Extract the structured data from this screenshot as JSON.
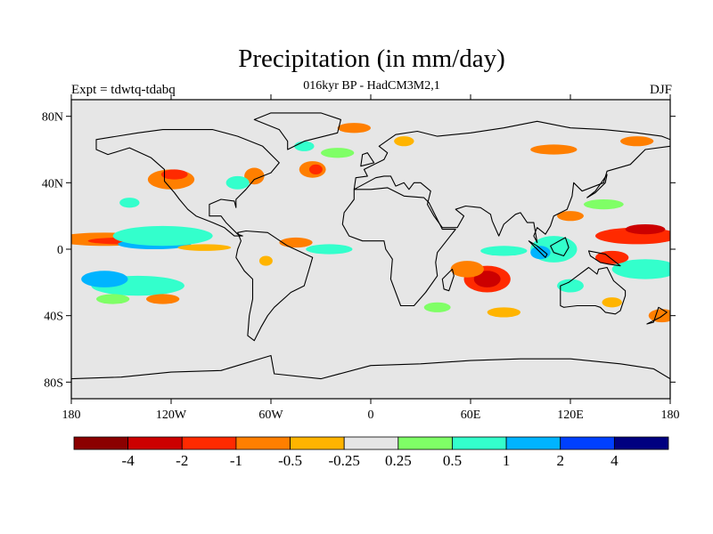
{
  "figure": {
    "title": "Precipitation (in mm/day)",
    "subtitle": "016kyr BP - HadCM3M2,1",
    "left_label": "Expt = tdwtq-tdabq",
    "right_label": "DJF"
  },
  "axes": {
    "lat_ticks": [
      {
        "label": "80N",
        "value": 80
      },
      {
        "label": "40N",
        "value": 40
      },
      {
        "label": "0",
        "value": 0
      },
      {
        "label": "40S",
        "value": -40
      },
      {
        "label": "80S",
        "value": -80
      }
    ],
    "lon_ticks": [
      {
        "label": "180",
        "value": -180
      },
      {
        "label": "120W",
        "value": -120
      },
      {
        "label": "60W",
        "value": -60
      },
      {
        "label": "0",
        "value": 0
      },
      {
        "label": "60E",
        "value": 60
      },
      {
        "label": "120E",
        "value": 120
      },
      {
        "label": "180",
        "value": 180
      }
    ],
    "lon_range": [
      -180,
      180
    ],
    "lat_range": [
      -90,
      90
    ]
  },
  "colorbar": {
    "colors": [
      "#8b0000",
      "#cc0000",
      "#ff2a00",
      "#ff7f00",
      "#ffb400",
      "#e6e6e6",
      "#7fff66",
      "#33ffcc",
      "#00b4ff",
      "#0040ff",
      "#000080"
    ],
    "labels": [
      "-4",
      "-2",
      "-1",
      "-0.5",
      "-0.25",
      "0.25",
      "0.5",
      "1",
      "2",
      "4"
    ]
  },
  "map": {
    "background": "#e6e6e6",
    "blobs": [
      {
        "lon": -160,
        "lat": 6,
        "rx": 30,
        "ry": 4,
        "color": "#ff7f00"
      },
      {
        "lon": -150,
        "lat": 5,
        "rx": 20,
        "ry": 2,
        "color": "#ff2a00"
      },
      {
        "lon": -130,
        "lat": 3,
        "rx": 22,
        "ry": 3,
        "color": "#00b4ff"
      },
      {
        "lon": -125,
        "lat": 8,
        "rx": 30,
        "ry": 6,
        "color": "#33ffcc"
      },
      {
        "lon": -100,
        "lat": 1,
        "rx": 16,
        "ry": 2,
        "color": "#ffb400"
      },
      {
        "lon": -120,
        "lat": 42,
        "rx": 14,
        "ry": 6,
        "color": "#ff7f00"
      },
      {
        "lon": -118,
        "lat": 45,
        "rx": 8,
        "ry": 3,
        "color": "#ff2a00"
      },
      {
        "lon": -145,
        "lat": 28,
        "rx": 6,
        "ry": 3,
        "color": "#33ffcc"
      },
      {
        "lon": -70,
        "lat": 44,
        "rx": 6,
        "ry": 5,
        "color": "#ff7f00"
      },
      {
        "lon": -80,
        "lat": 40,
        "rx": 7,
        "ry": 4,
        "color": "#33ffcc"
      },
      {
        "lon": -35,
        "lat": 48,
        "rx": 8,
        "ry": 5,
        "color": "#ff7f00"
      },
      {
        "lon": -33,
        "lat": 48,
        "rx": 4,
        "ry": 3,
        "color": "#ff2a00"
      },
      {
        "lon": -40,
        "lat": 62,
        "rx": 6,
        "ry": 3,
        "color": "#33ffcc"
      },
      {
        "lon": -10,
        "lat": 73,
        "rx": 10,
        "ry": 3,
        "color": "#ff7f00"
      },
      {
        "lon": 20,
        "lat": 65,
        "rx": 6,
        "ry": 3,
        "color": "#ffb400"
      },
      {
        "lon": -20,
        "lat": 58,
        "rx": 10,
        "ry": 3,
        "color": "#7fff66"
      },
      {
        "lon": -45,
        "lat": 4,
        "rx": 10,
        "ry": 3,
        "color": "#ff7f00"
      },
      {
        "lon": -25,
        "lat": 0,
        "rx": 14,
        "ry": 3,
        "color": "#33ffcc"
      },
      {
        "lon": -63,
        "lat": -7,
        "rx": 4,
        "ry": 3,
        "color": "#ffb400"
      },
      {
        "lon": -140,
        "lat": -22,
        "rx": 28,
        "ry": 6,
        "color": "#33ffcc"
      },
      {
        "lon": -160,
        "lat": -18,
        "rx": 14,
        "ry": 5,
        "color": "#00b4ff"
      },
      {
        "lon": -125,
        "lat": -30,
        "rx": 10,
        "ry": 3,
        "color": "#ff7f00"
      },
      {
        "lon": -155,
        "lat": -30,
        "rx": 10,
        "ry": 3,
        "color": "#7fff66"
      },
      {
        "lon": 70,
        "lat": -18,
        "rx": 14,
        "ry": 8,
        "color": "#ff2a00"
      },
      {
        "lon": 70,
        "lat": -18,
        "rx": 8,
        "ry": 5,
        "color": "#cc0000"
      },
      {
        "lon": 58,
        "lat": -12,
        "rx": 10,
        "ry": 5,
        "color": "#ff7f00"
      },
      {
        "lon": 80,
        "lat": -1,
        "rx": 14,
        "ry": 3,
        "color": "#33ffcc"
      },
      {
        "lon": 110,
        "lat": 0,
        "rx": 14,
        "ry": 8,
        "color": "#33ffcc"
      },
      {
        "lon": 102,
        "lat": -2,
        "rx": 6,
        "ry": 4,
        "color": "#00b4ff"
      },
      {
        "lon": 160,
        "lat": 8,
        "rx": 25,
        "ry": 5,
        "color": "#ff2a00"
      },
      {
        "lon": 165,
        "lat": 12,
        "rx": 12,
        "ry": 3,
        "color": "#cc0000"
      },
      {
        "lon": 165,
        "lat": -12,
        "rx": 20,
        "ry": 6,
        "color": "#33ffcc"
      },
      {
        "lon": 145,
        "lat": -5,
        "rx": 10,
        "ry": 4,
        "color": "#ff2a00"
      },
      {
        "lon": 120,
        "lat": -22,
        "rx": 8,
        "ry": 4,
        "color": "#33ffcc"
      },
      {
        "lon": 120,
        "lat": 20,
        "rx": 8,
        "ry": 3,
        "color": "#ff7f00"
      },
      {
        "lon": 140,
        "lat": 27,
        "rx": 12,
        "ry": 3,
        "color": "#7fff66"
      },
      {
        "lon": 175,
        "lat": -40,
        "rx": 8,
        "ry": 4,
        "color": "#ff7f00"
      },
      {
        "lon": 145,
        "lat": -32,
        "rx": 6,
        "ry": 3,
        "color": "#ffb400"
      },
      {
        "lon": 40,
        "lat": -35,
        "rx": 8,
        "ry": 3,
        "color": "#7fff66"
      },
      {
        "lon": 80,
        "lat": -38,
        "rx": 10,
        "ry": 3,
        "color": "#ffb400"
      },
      {
        "lon": 110,
        "lat": 60,
        "rx": 14,
        "ry": 3,
        "color": "#ff7f00"
      },
      {
        "lon": 160,
        "lat": 65,
        "rx": 10,
        "ry": 3,
        "color": "#ff7f00"
      }
    ],
    "continents": [
      [
        [
          -165,
          66
        ],
        [
          -140,
          70
        ],
        [
          -125,
          72
        ],
        [
          -95,
          72
        ],
        [
          -80,
          68
        ],
        [
          -65,
          62
        ],
        [
          -55,
          52
        ],
        [
          -60,
          46
        ],
        [
          -70,
          42
        ],
        [
          -75,
          36
        ],
        [
          -81,
          30
        ],
        [
          -81,
          25
        ],
        [
          -82,
          29
        ],
        [
          -90,
          30
        ],
        [
          -97,
          27
        ],
        [
          -97,
          20
        ],
        [
          -90,
          20
        ],
        [
          -87,
          16
        ],
        [
          -80,
          9
        ],
        [
          -77,
          8
        ],
        [
          -82,
          8
        ],
        [
          -88,
          13
        ],
        [
          -95,
          16
        ],
        [
          -105,
          20
        ],
        [
          -110,
          24
        ],
        [
          -115,
          30
        ],
        [
          -118,
          34
        ],
        [
          -124,
          41
        ],
        [
          -124,
          48
        ],
        [
          -132,
          55
        ],
        [
          -145,
          61
        ],
        [
          -158,
          57
        ],
        [
          -165,
          60
        ]
      ],
      [
        [
          -80,
          10
        ],
        [
          -75,
          11
        ],
        [
          -62,
          10
        ],
        [
          -50,
          2
        ],
        [
          -35,
          -5
        ],
        [
          -37,
          -12
        ],
        [
          -40,
          -22
        ],
        [
          -48,
          -26
        ],
        [
          -58,
          -35
        ],
        [
          -62,
          -40
        ],
        [
          -66,
          -47
        ],
        [
          -70,
          -55
        ],
        [
          -74,
          -52
        ],
        [
          -73,
          -40
        ],
        [
          -71,
          -30
        ],
        [
          -71,
          -18
        ],
        [
          -76,
          -13
        ],
        [
          -81,
          -5
        ],
        [
          -80,
          0
        ],
        [
          -78,
          5
        ]
      ],
      [
        [
          -50,
          60
        ],
        [
          -40,
          65
        ],
        [
          -20,
          70
        ],
        [
          -18,
          78
        ],
        [
          -30,
          82
        ],
        [
          -60,
          82
        ],
        [
          -70,
          78
        ],
        [
          -55,
          72
        ],
        [
          -50,
          65
        ]
      ],
      [
        [
          -10,
          36
        ],
        [
          0,
          36
        ],
        [
          10,
          37
        ],
        [
          20,
          32
        ],
        [
          32,
          31
        ],
        [
          35,
          28
        ],
        [
          43,
          12
        ],
        [
          51,
          12
        ],
        [
          40,
          -2
        ],
        [
          39,
          -8
        ],
        [
          40,
          -16
        ],
        [
          33,
          -26
        ],
        [
          26,
          -34
        ],
        [
          18,
          -34
        ],
        [
          12,
          -18
        ],
        [
          13,
          -6
        ],
        [
          9,
          0
        ],
        [
          8,
          5
        ],
        [
          -5,
          5
        ],
        [
          -13,
          8
        ],
        [
          -17,
          15
        ],
        [
          -16,
          22
        ],
        [
          -10,
          30
        ]
      ],
      [
        [
          -10,
          36
        ],
        [
          -9,
          43
        ],
        [
          -2,
          44
        ],
        [
          -4,
          48
        ],
        [
          2,
          51
        ],
        [
          8,
          54
        ],
        [
          10,
          58
        ],
        [
          5,
          62
        ],
        [
          15,
          69
        ],
        [
          28,
          71
        ],
        [
          40,
          68
        ],
        [
          60,
          70
        ],
        [
          80,
          73
        ],
        [
          100,
          77
        ],
        [
          120,
          73
        ],
        [
          140,
          72
        ],
        [
          160,
          70
        ],
        [
          175,
          68
        ],
        [
          180,
          66
        ],
        [
          180,
          62
        ],
        [
          165,
          60
        ],
        [
          160,
          55
        ],
        [
          156,
          51
        ],
        [
          142,
          47
        ],
        [
          140,
          40
        ],
        [
          127,
          35
        ],
        [
          122,
          40
        ],
        [
          121,
          32
        ],
        [
          118,
          24
        ],
        [
          110,
          20
        ],
        [
          108,
          14
        ],
        [
          105,
          9
        ],
        [
          100,
          13
        ],
        [
          98,
          8
        ],
        [
          100,
          4
        ],
        [
          98,
          16
        ],
        [
          94,
          16
        ],
        [
          90,
          22
        ],
        [
          87,
          21
        ],
        [
          80,
          15
        ],
        [
          77,
          8
        ],
        [
          73,
          17
        ],
        [
          72,
          21
        ],
        [
          66,
          25
        ],
        [
          57,
          26
        ],
        [
          51,
          24
        ],
        [
          56,
          20
        ],
        [
          52,
          13
        ],
        [
          43,
          13
        ],
        [
          38,
          20
        ],
        [
          34,
          27
        ],
        [
          36,
          35
        ],
        [
          30,
          40
        ],
        [
          26,
          40
        ],
        [
          23,
          36
        ],
        [
          20,
          40
        ],
        [
          15,
          38
        ],
        [
          12,
          44
        ],
        [
          8,
          44
        ],
        [
          3,
          43
        ]
      ],
      [
        [
          114,
          -22
        ],
        [
          114,
          -34
        ],
        [
          116,
          -35
        ],
        [
          124,
          -34
        ],
        [
          135,
          -34
        ],
        [
          138,
          -35
        ],
        [
          141,
          -38
        ],
        [
          147,
          -39
        ],
        [
          150,
          -37
        ],
        [
          153,
          -28
        ],
        [
          153,
          -25
        ],
        [
          146,
          -19
        ],
        [
          142,
          -11
        ],
        [
          137,
          -12
        ],
        [
          136,
          -15
        ],
        [
          131,
          -11
        ],
        [
          123,
          -17
        ],
        [
          119,
          -20
        ]
      ],
      [
        [
          -180,
          -78
        ],
        [
          -150,
          -77
        ],
        [
          -120,
          -74
        ],
        [
          -90,
          -73
        ],
        [
          -60,
          -64
        ],
        [
          -58,
          -75
        ],
        [
          -30,
          -78
        ],
        [
          0,
          -70
        ],
        [
          30,
          -69
        ],
        [
          60,
          -67
        ],
        [
          90,
          -66
        ],
        [
          120,
          -66
        ],
        [
          150,
          -69
        ],
        [
          170,
          -72
        ],
        [
          180,
          -78
        ],
        [
          180,
          -90
        ],
        [
          -180,
          -90
        ]
      ],
      [
        [
          95,
          5
        ],
        [
          105,
          -5
        ],
        [
          106,
          -3
        ],
        [
          100,
          2
        ]
      ],
      [
        [
          108,
          2
        ],
        [
          117,
          7
        ],
        [
          119,
          1
        ],
        [
          116,
          -4
        ],
        [
          110,
          -2
        ]
      ],
      [
        [
          131,
          -1
        ],
        [
          141,
          -3
        ],
        [
          150,
          -10
        ],
        [
          143,
          -9
        ],
        [
          138,
          -8
        ],
        [
          132,
          -4
        ]
      ],
      [
        [
          49,
          -12
        ],
        [
          50,
          -16
        ],
        [
          47,
          -25
        ],
        [
          44,
          -24
        ],
        [
          43,
          -18
        ]
      ],
      [
        [
          130,
          31
        ],
        [
          135,
          34
        ],
        [
          141,
          40
        ],
        [
          142,
          45
        ],
        [
          140,
          42
        ],
        [
          135,
          35
        ]
      ],
      [
        [
          -6,
          50
        ],
        [
          2,
          52
        ],
        [
          -2,
          58
        ],
        [
          -5,
          57
        ]
      ],
      [
        [
          166,
          -45
        ],
        [
          174,
          -41
        ],
        [
          178,
          -38
        ],
        [
          173,
          -35
        ],
        [
          170,
          -44
        ]
      ]
    ]
  }
}
